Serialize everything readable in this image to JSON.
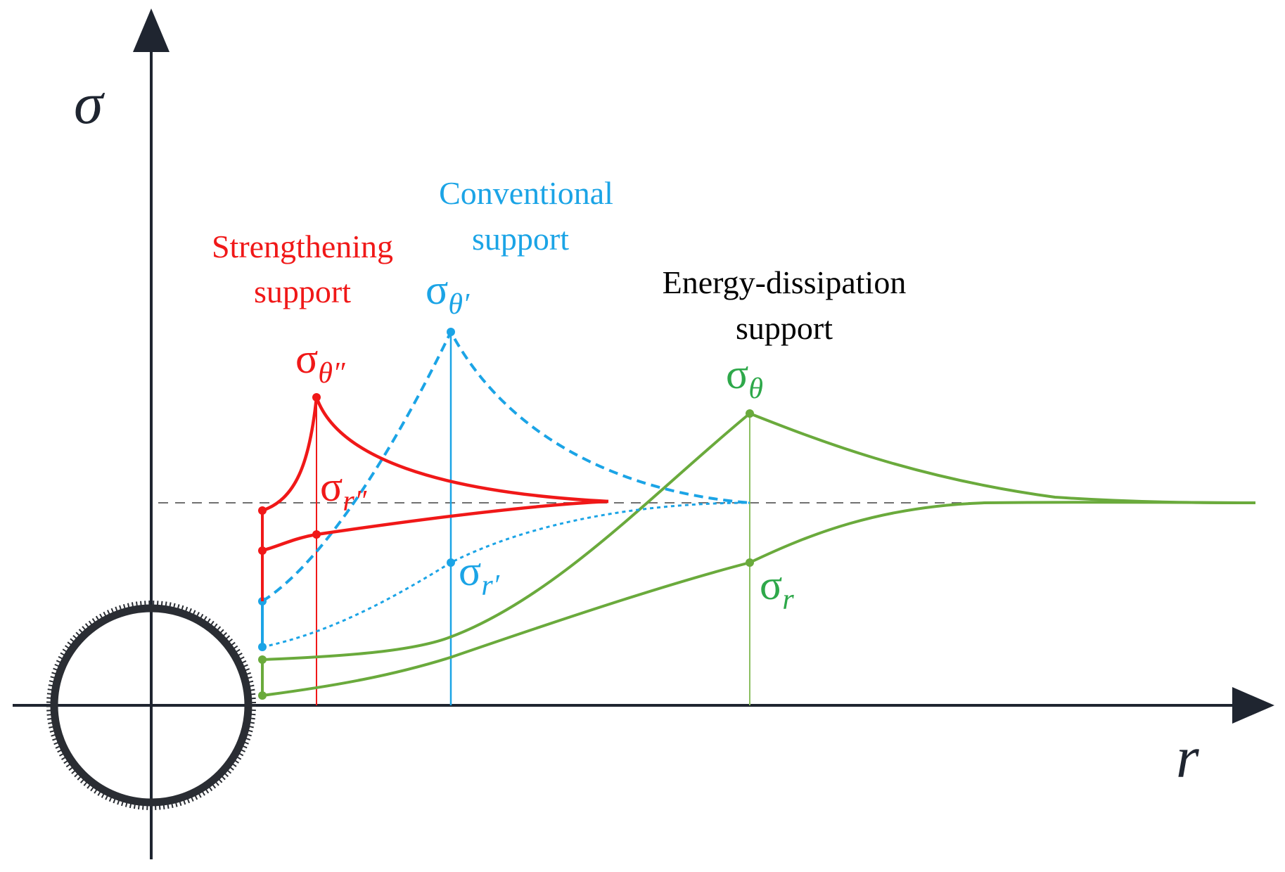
{
  "colors": {
    "axis": "#1f2530",
    "strengthening": "#f01818",
    "conventional": "#1ba4e6",
    "energy": "#6aaa3c",
    "energy_label": "#2ea84a",
    "reference": "#707070",
    "energy_text": "#000000"
  },
  "axes": {
    "y_label": "σ",
    "x_label": "r"
  },
  "legend": {
    "strengthening": {
      "line1": "Strengthening",
      "line2": "support"
    },
    "conventional": {
      "line1": "Conventional",
      "line2": "support"
    },
    "energy": {
      "line1": "Energy-dissipation",
      "line2": "support"
    }
  },
  "symbols": {
    "sigma_theta_dprime": {
      "base": "σ",
      "sub": "θ″"
    },
    "sigma_r_dprime": {
      "base": "σ",
      "sub": "r″"
    },
    "sigma_theta_prime": {
      "base": "σ",
      "sub": "θ′"
    },
    "sigma_r_prime": {
      "base": "σ",
      "sub": "r′"
    },
    "sigma_theta": {
      "base": "σ",
      "sub": "θ"
    },
    "sigma_r": {
      "base": "σ",
      "sub": "r"
    }
  },
  "icons": {
    "tunnel": "tunnel-cross-section-icon"
  }
}
